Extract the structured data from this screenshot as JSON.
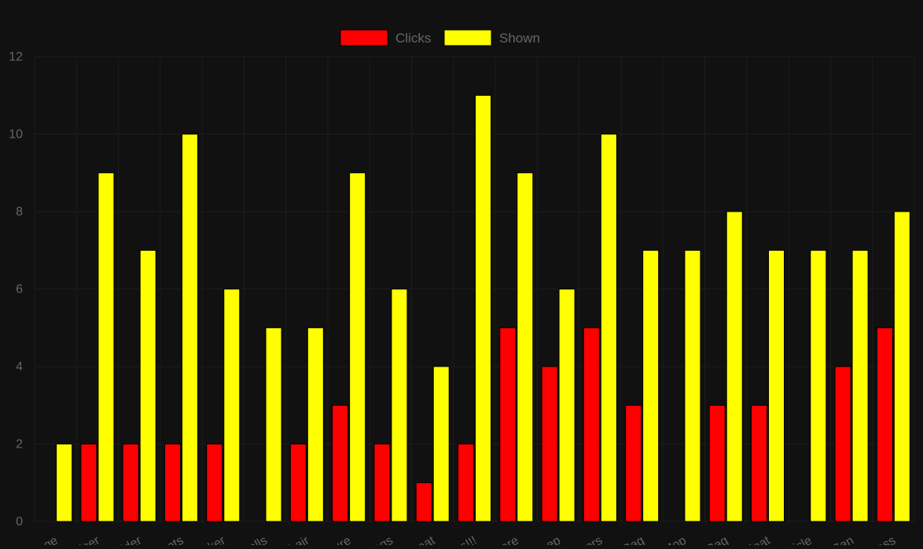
{
  "chart_data": {
    "type": "bar",
    "categories": [
      "age",
      "icer",
      "lder",
      "ots",
      "ker",
      "alls",
      "hair",
      "ure",
      "ags",
      "eat",
      "s!!!",
      "are",
      "eep",
      "ors",
      "Rag",
      "Mop",
      "Rag",
      "leat",
      "icle",
      "Can",
      "ass"
    ],
    "series": [
      {
        "name": "Clicks",
        "color": "#ff0000",
        "values": [
          0,
          2,
          2,
          2,
          2,
          0,
          2,
          3,
          2,
          1,
          2,
          5,
          4,
          5,
          3,
          0,
          3,
          3,
          0,
          4,
          5
        ]
      },
      {
        "name": "Shown",
        "color": "#ffff00",
        "values": [
          2,
          9,
          7,
          10,
          6,
          5,
          5,
          9,
          6,
          4,
          11,
          9,
          6,
          10,
          7,
          7,
          8,
          7,
          7,
          7,
          8
        ]
      }
    ],
    "yticks": [
      "0",
      "2",
      "4",
      "6",
      "8",
      "10",
      "12"
    ],
    "ylim": [
      0,
      12
    ],
    "grid": true,
    "legend": "top-center",
    "colors": {
      "background": "#111111",
      "grid": "#1d1d1d",
      "text": "#666666",
      "bar_border": "#000000"
    }
  }
}
